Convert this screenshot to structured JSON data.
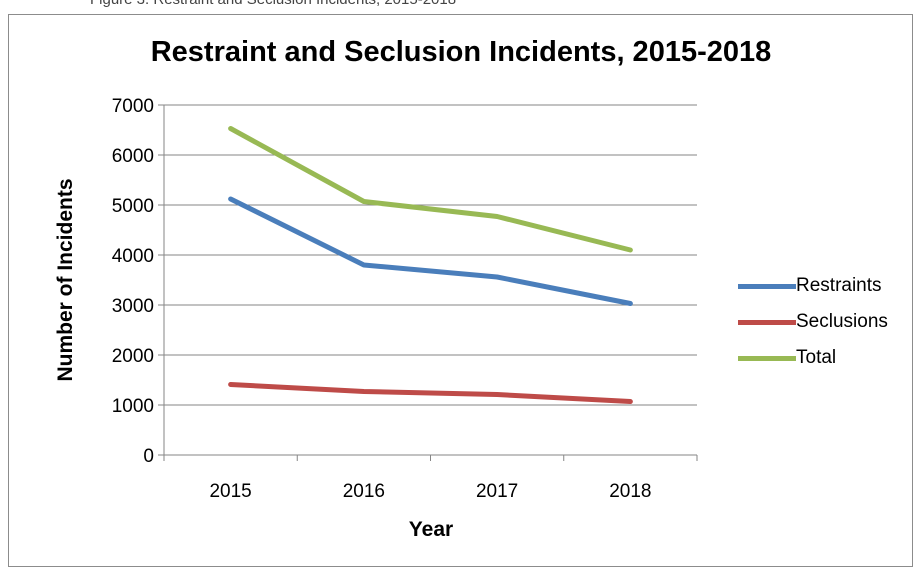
{
  "page": {
    "top_fragment": "Figure 3. Restraint and Seclusion Incidents, 2015-2018"
  },
  "chart_data": {
    "type": "line",
    "title": "Restraint and Seclusion Incidents, 2015-2018",
    "xlabel": "Year",
    "ylabel": "Number of Incidents",
    "categories": [
      "2015",
      "2016",
      "2017",
      "2018"
    ],
    "ylim": [
      0,
      7000
    ],
    "yticks": [
      "0",
      "1000",
      "2000",
      "3000",
      "4000",
      "5000",
      "6000",
      "7000"
    ],
    "grid": true,
    "legend_position": "right",
    "series": [
      {
        "name": "Restraints",
        "color": "#4a7ebb",
        "values": [
          5120,
          3800,
          3560,
          3030
        ]
      },
      {
        "name": "Seclusions",
        "color": "#be4b48",
        "values": [
          1410,
          1270,
          1210,
          1070
        ]
      },
      {
        "name": "Total",
        "color": "#98b954",
        "values": [
          6530,
          5070,
          4770,
          4100
        ]
      }
    ]
  }
}
